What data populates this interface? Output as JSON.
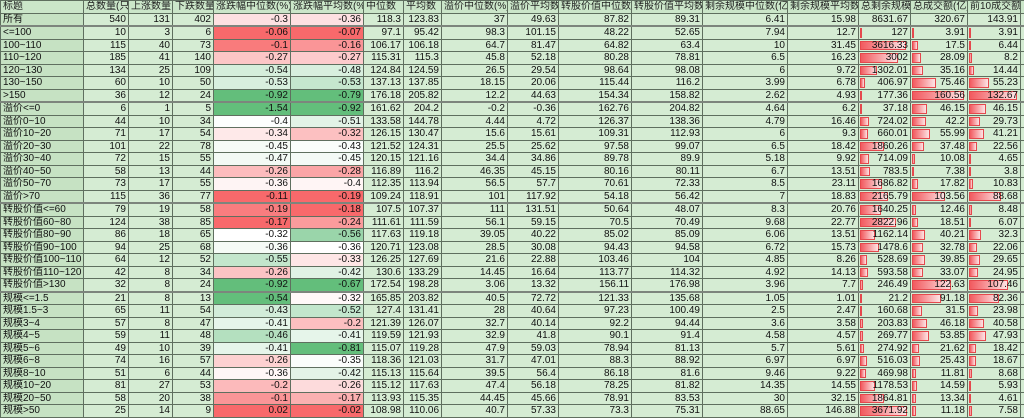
{
  "headers": [
    "标题",
    "总数量(只)",
    "上涨数量",
    "下跌数量",
    "涨跌幅中位数(%)",
    "涨跌幅平均数(%)",
    "中位数",
    "平均数",
    "溢价中位数(%)",
    "溢价平均数",
    "转股价值中位数",
    "转股价值平均数",
    "剩余规模中位数(亿)",
    "剩余规模平均数",
    "总剩余规模",
    "总成交额(亿)",
    "前10成交额",
    ""
  ],
  "colors": {
    "heat_low": "#63be7b",
    "heat_mid": "#ffffff",
    "heat_high": "#f8696b",
    "bar": "#f25a5f",
    "cell_bg": "#d5ecd3"
  },
  "heatmap_columns": [
    4,
    5
  ],
  "databar_columns": [
    14,
    15,
    16
  ],
  "groups": [
    [
      0,
      0
    ],
    [
      1,
      6
    ],
    [
      7,
      14
    ],
    [
      15,
      21
    ],
    [
      22,
      31
    ]
  ],
  "rows": [
    [
      "所有",
      540,
      131,
      402,
      -0.3,
      -0.36,
      118.3,
      123.83,
      37,
      49.63,
      87.82,
      89.31,
      6.41,
      15.98,
      8631.67,
      320.67,
      143.91
    ],
    [
      "<=100",
      10,
      3,
      6,
      -0.06,
      -0.07,
      97.1,
      95.42,
      98.3,
      101.15,
      48.22,
      52.65,
      7.94,
      12.7,
      127,
      3.91,
      3.91
    ],
    [
      "100~110",
      115,
      40,
      73,
      -0.1,
      -0.16,
      106.17,
      106.18,
      64.7,
      81.47,
      64.82,
      63.4,
      10,
      31.45,
      3616.33,
      17.5,
      6.44
    ],
    [
      "110~120",
      185,
      41,
      140,
      -0.27,
      -0.27,
      115.31,
      115.3,
      45.8,
      52.18,
      80.28,
      78.81,
      6.5,
      16.23,
      3002,
      28.09,
      8.2
    ],
    [
      "120~130",
      134,
      25,
      109,
      -0.54,
      -0.48,
      124.84,
      124.59,
      26.5,
      29.54,
      98.64,
      98.08,
      6,
      9.72,
      1302.01,
      35.16,
      14.44
    ],
    [
      "130~150",
      60,
      10,
      50,
      -0.53,
      -0.53,
      137.13,
      137.85,
      18.15,
      20.06,
      115.44,
      116.2,
      3.99,
      6.78,
      406.97,
      75.46,
      55.23
    ],
    [
      ">150",
      36,
      12,
      24,
      -0.92,
      -0.79,
      176.18,
      205.82,
      12.2,
      44.63,
      154.34,
      158.82,
      2.62,
      4.93,
      177.36,
      160.56,
      132.67
    ],
    [
      "溢价<=0",
      6,
      1,
      5,
      -1.54,
      -0.92,
      161.62,
      204.2,
      -0.2,
      -0.36,
      162.76,
      204.82,
      4.64,
      6.2,
      37.18,
      46.15,
      46.15
    ],
    [
      "溢价0~10",
      44,
      10,
      34,
      -0.4,
      -0.51,
      133.58,
      144.78,
      4.44,
      4.72,
      126.37,
      138.36,
      4.79,
      16.46,
      724.02,
      42.2,
      29.73
    ],
    [
      "溢价10~20",
      71,
      17,
      54,
      -0.34,
      -0.32,
      126.15,
      130.47,
      15.6,
      15.61,
      109.31,
      112.93,
      6,
      9.3,
      660.01,
      55.99,
      41.21
    ],
    [
      "溢价20~30",
      101,
      22,
      78,
      -0.45,
      -0.43,
      121.52,
      124.31,
      25.5,
      25.62,
      97.58,
      99.07,
      6.5,
      18.42,
      1860.26,
      37.48,
      22.56
    ],
    [
      "溢价30~40",
      72,
      15,
      55,
      -0.47,
      -0.45,
      120.15,
      121.16,
      34.4,
      34.86,
      89.78,
      89.9,
      5.18,
      9.92,
      714.09,
      10.08,
      4.65
    ],
    [
      "溢价40~50",
      58,
      13,
      44,
      -0.26,
      -0.28,
      116.89,
      116.2,
      46.35,
      45.15,
      80.16,
      80.11,
      6.7,
      13.51,
      783.5,
      7.38,
      3.8
    ],
    [
      "溢价50~70",
      73,
      17,
      55,
      -0.36,
      -0.4,
      112.35,
      113.94,
      56.5,
      57.7,
      70.61,
      72.33,
      8.5,
      23.11,
      1686.82,
      17.82,
      10.83
    ],
    [
      "溢价>70",
      115,
      36,
      77,
      -0.11,
      -0.19,
      109.24,
      118.91,
      101,
      117.92,
      54.18,
      56.42,
      7,
      18.83,
      2165.79,
      103.56,
      88.68
    ],
    [
      "转股价值<=60",
      79,
      19,
      58,
      -0.19,
      -0.18,
      107.5,
      107.37,
      111,
      131.51,
      50.64,
      48.07,
      8.3,
      20.76,
      1640.25,
      12.46,
      8.48
    ],
    [
      "转股价值60~80",
      124,
      38,
      85,
      -0.17,
      -0.24,
      111.61,
      111.59,
      56.1,
      59.15,
      70.5,
      70.49,
      9.68,
      22.77,
      2822.96,
      18.51,
      6.07
    ],
    [
      "转股价值80~90",
      86,
      18,
      65,
      -0.32,
      -0.56,
      117.63,
      119.18,
      39.05,
      40.22,
      85.02,
      85.09,
      6.06,
      13.51,
      1162.14,
      40.21,
      32.3
    ],
    [
      "转股价值90~100",
      94,
      25,
      68,
      -0.36,
      -0.36,
      120.71,
      123.08,
      28.5,
      30.08,
      94.43,
      94.58,
      6.72,
      15.73,
      1478.6,
      32.78,
      22.06
    ],
    [
      "转股价值100~110",
      64,
      12,
      52,
      -0.55,
      -0.33,
      126.25,
      127.69,
      21.6,
      22.88,
      103.46,
      104,
      4.85,
      8.26,
      528.69,
      39.85,
      29.65
    ],
    [
      "转股价值110~120",
      42,
      8,
      34,
      -0.26,
      -0.42,
      130.6,
      133.29,
      14.45,
      16.64,
      113.77,
      114.32,
      4.92,
      14.13,
      593.58,
      33.07,
      24.95
    ],
    [
      "转股价值>130",
      32,
      8,
      24,
      -0.92,
      -0.67,
      172.54,
      198.28,
      3.06,
      13.32,
      156.11,
      176.98,
      3.96,
      7.7,
      246.49,
      122.63,
      107.46
    ],
    [
      "规模<=1.5",
      21,
      8,
      13,
      -0.54,
      -0.32,
      165.85,
      203.82,
      40.5,
      72.72,
      121.33,
      135.68,
      1.05,
      1.01,
      21.2,
      91.18,
      82.36
    ],
    [
      "规模1.5~3",
      65,
      11,
      54,
      -0.43,
      -0.52,
      127.4,
      131.41,
      28,
      40.64,
      97.23,
      100.49,
      2.5,
      2.47,
      160.68,
      31.5,
      23.98
    ],
    [
      "规模3~4",
      57,
      8,
      47,
      -0.41,
      -0.2,
      121.39,
      126.07,
      32.7,
      40.14,
      92.2,
      94.44,
      3.6,
      3.58,
      203.83,
      46.18,
      40.58
    ],
    [
      "规模4~5",
      59,
      11,
      48,
      -0.46,
      -0.41,
      119.59,
      121.93,
      32.9,
      41.8,
      90.1,
      91.4,
      4.58,
      4.57,
      269.77,
      53.85,
      47.93
    ],
    [
      "规模5~6",
      49,
      10,
      39,
      -0.41,
      -0.81,
      115.07,
      119.28,
      47.9,
      59.03,
      78.94,
      81.13,
      5.7,
      5.61,
      274.92,
      21.62,
      18.42
    ],
    [
      "规模6~8",
      74,
      16,
      57,
      -0.26,
      -0.35,
      118.36,
      121.03,
      31.7,
      47.01,
      88.3,
      88.92,
      6.97,
      6.97,
      516.03,
      25.43,
      18.67
    ],
    [
      "规模8~10",
      51,
      6,
      44,
      -0.36,
      -0.42,
      115.13,
      115.64,
      39.5,
      56.4,
      86.18,
      81.6,
      9.46,
      9.22,
      469.98,
      11.81,
      8.68
    ],
    [
      "规模10~20",
      81,
      27,
      53,
      -0.2,
      -0.26,
      115.12,
      117.63,
      47.4,
      56.18,
      78.25,
      81.82,
      14.35,
      14.55,
      1178.53,
      14.59,
      5.93
    ],
    [
      "规模20~50",
      58,
      20,
      38,
      -0.1,
      -0.17,
      113.93,
      115.35,
      44.45,
      45.66,
      78.91,
      83.53,
      30,
      32.15,
      1864.81,
      13.34,
      4.61
    ],
    [
      "规模>50",
      25,
      14,
      9,
      0.02,
      -0.02,
      108.98,
      110.06,
      40.7,
      57.33,
      73.3,
      75.31,
      88.65,
      146.88,
      3671.92,
      11.18,
      7.58
    ]
  ]
}
